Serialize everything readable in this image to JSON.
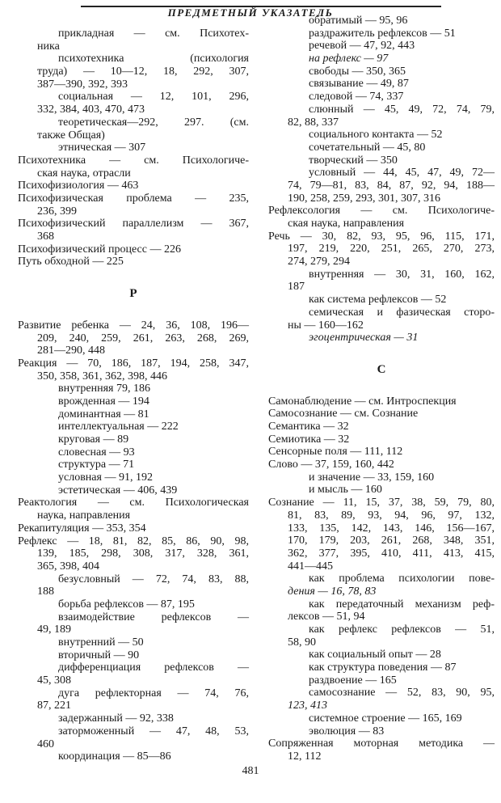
{
  "header": {
    "title": "ПРЕДМЕТНЫЙ УКАЗАТЕЛЬ"
  },
  "page_number": "481",
  "left_column": [
    {
      "t": "s",
      "text": "прикладная — см. Психотех-"
    },
    {
      "t": "c",
      "text": "ника"
    },
    {
      "t": "s",
      "text": "психотехника (психология"
    },
    {
      "t": "c",
      "text": "труда) — 10—12, 18, 292, 307,"
    },
    {
      "t": "c",
      "text": "387—390, 392, 393"
    },
    {
      "t": "s",
      "text": "социальная — 12, 101, 296,"
    },
    {
      "t": "c",
      "text": "332, 384, 403, 470, 473"
    },
    {
      "t": "s",
      "text": "теоретическая—292, 297. (см."
    },
    {
      "t": "c",
      "text": "также Общая)"
    },
    {
      "t": "s",
      "text": "этническая — 307"
    },
    {
      "t": "m",
      "text": "Психотехника — см. Психологиче-"
    },
    {
      "t": "c",
      "text": "ская наука, отрасли"
    },
    {
      "t": "m",
      "text": "Психофизиология — 463"
    },
    {
      "t": "m",
      "text": "Психофизическая проблема — 235,"
    },
    {
      "t": "c",
      "text": "236, 399"
    },
    {
      "t": "m",
      "text": "Психофизический параллелизм — 367,"
    },
    {
      "t": "c",
      "text": "368"
    },
    {
      "t": "m",
      "text": "Психофизический процесс — 226"
    },
    {
      "t": "m",
      "text": "Путь обходной — 225"
    },
    {
      "t": "h",
      "text": "Р"
    },
    {
      "t": "m",
      "text": "Развитие ребенка — 24, 36, 108, 196—"
    },
    {
      "t": "c",
      "text": "209, 240, 259, 261, 263, 268, 269,"
    },
    {
      "t": "c",
      "text": "281—290, 448"
    },
    {
      "t": "m",
      "text": "Реакция — 70, 186, 187, 194, 258, 347,"
    },
    {
      "t": "c",
      "text": "350, 358, 361, 362, 398, 446"
    },
    {
      "t": "s",
      "text": "внутренняя 79, 186"
    },
    {
      "t": "s",
      "text": "врожденная — 194"
    },
    {
      "t": "s",
      "text": "доминантная — 81"
    },
    {
      "t": "s",
      "text": "интеллектуальная — 222"
    },
    {
      "t": "s",
      "text": "круговая — 89"
    },
    {
      "t": "s",
      "text": "словесная — 93"
    },
    {
      "t": "s",
      "text": "структура — 71"
    },
    {
      "t": "s",
      "text": "условная — 91, 192"
    },
    {
      "t": "s",
      "text": "эстетическая — 406, 439"
    },
    {
      "t": "m",
      "text": "Реактология — см. Психологическая"
    },
    {
      "t": "c",
      "text": "наука, направления"
    },
    {
      "t": "m",
      "text": "Рекапитуляция — 353, 354"
    },
    {
      "t": "m",
      "text": "Рефлекс — 18, 81, 82, 85, 86, 90, 98,"
    },
    {
      "t": "c",
      "text": "139, 185, 298, 308, 317, 328, 361,"
    },
    {
      "t": "c",
      "text": "365, 398, 404"
    },
    {
      "t": "s",
      "text": "безусловный — 72, 74, 83, 88,"
    },
    {
      "t": "c",
      "text": "188"
    },
    {
      "t": "s",
      "text": "борьба рефлексов — 87, 195"
    },
    {
      "t": "s",
      "text": "взаимодействие рефлексов —"
    },
    {
      "t": "c",
      "text": "49, 189"
    },
    {
      "t": "s",
      "text": "внутренний — 50"
    },
    {
      "t": "s",
      "text": "вторичный — 90"
    },
    {
      "t": "s",
      "text": "дифференциация рефлексов —"
    },
    {
      "t": "c",
      "text": "45, 308"
    },
    {
      "t": "s",
      "text": "дуга рефлекторная — 74, 76,"
    },
    {
      "t": "c",
      "text": "87, 221"
    },
    {
      "t": "s",
      "text": "задержанный — 92, 338"
    },
    {
      "t": "s",
      "text": "заторможенный — 47, 48, 53,"
    },
    {
      "t": "c",
      "text": "460"
    },
    {
      "t": "s",
      "text": "координация — 85—86"
    }
  ],
  "right_column": [
    {
      "t": "s",
      "text": "обратимый — 95, 96"
    },
    {
      "t": "s",
      "text": "раздражитель рефлексов — 51"
    },
    {
      "t": "s",
      "text": "речевой — 47, 92, 443"
    },
    {
      "t": "s",
      "i": true,
      "text": "на рефлекс — 97"
    },
    {
      "t": "s",
      "text": "свободы — 350, 365"
    },
    {
      "t": "s",
      "text": "связывание — 49, 87"
    },
    {
      "t": "s",
      "text": "следовой — 74, 337"
    },
    {
      "t": "s",
      "text": "слюнный — 45, 49, 72, 74, 79,"
    },
    {
      "t": "c",
      "text": "82, 88, 337"
    },
    {
      "t": "s",
      "text": "социального контакта — 52"
    },
    {
      "t": "s",
      "text": "сочетательный — 45, 80"
    },
    {
      "t": "s",
      "text": "творческий — 350"
    },
    {
      "t": "s",
      "text": "условный — 44, 45, 47, 49, 72—"
    },
    {
      "t": "c",
      "text": "74, 79—81, 83, 84, 87, 92, 94, 188—"
    },
    {
      "t": "c",
      "text": "190, 258, 259, 293, 301, 307, 316"
    },
    {
      "t": "m",
      "text": "Рефлексология — см. Психологиче-"
    },
    {
      "t": "c",
      "text": "ская наука, направления"
    },
    {
      "t": "m",
      "text": "Речь — 30, 82, 93, 95, 96, 115, 171,"
    },
    {
      "t": "c",
      "text": "197, 219, 220, 251, 265, 270, 273,"
    },
    {
      "t": "c",
      "text": "274, 279, 294"
    },
    {
      "t": "s",
      "text": "внутренняя — 30, 31, 160, 162,"
    },
    {
      "t": "c",
      "text": "187"
    },
    {
      "t": "s",
      "text": "как система рефлексов — 52"
    },
    {
      "t": "s",
      "text": "семическая и фазическая сторо-"
    },
    {
      "t": "c",
      "text": "ны — 160—162"
    },
    {
      "t": "s",
      "i": true,
      "text": "эгоцентрическая — 31"
    },
    {
      "t": "h",
      "text": "С"
    },
    {
      "t": "m",
      "text": "Самонаблюдение — см. Интроспекция"
    },
    {
      "t": "m",
      "text": "Самосознание — см. Сознание"
    },
    {
      "t": "m",
      "text": "Семантика — 32"
    },
    {
      "t": "m",
      "text": "Семиотика — 32"
    },
    {
      "t": "m",
      "text": "Сенсорные поля — 111, 112"
    },
    {
      "t": "m",
      "text": "Слово — 37, 159, 160, 442"
    },
    {
      "t": "s",
      "text": "и значение — 33, 159, 160"
    },
    {
      "t": "s",
      "text": "и мысль — 160"
    },
    {
      "t": "m",
      "text": "Сознание — 11, 15, 37, 38, 59, 79, 80,"
    },
    {
      "t": "c",
      "text": "81, 83, 89, 93, 94, 96, 97, 132,"
    },
    {
      "t": "c",
      "text": "133, 135, 142, 143, 146, 156—167,"
    },
    {
      "t": "c",
      "text": "170, 179, 203, 261, 268, 348, 351,"
    },
    {
      "t": "c",
      "text": "362, 377, 395, 410, 411, 413, 415,"
    },
    {
      "t": "c",
      "text": "441—445"
    },
    {
      "t": "s",
      "text": "как проблема психологии пове-"
    },
    {
      "t": "c",
      "i": true,
      "text": "дения — 16, 78, 83"
    },
    {
      "t": "s",
      "text": "как передаточный механизм реф-"
    },
    {
      "t": "c",
      "text": "лексов — 51, 94"
    },
    {
      "t": "s",
      "text": "как рефлекс рефлексов — 51,"
    },
    {
      "t": "c",
      "text": "58, 90"
    },
    {
      "t": "s",
      "text": "как социальный опыт — 28"
    },
    {
      "t": "s",
      "text": "как структура поведения — 87"
    },
    {
      "t": "s",
      "text": "раздвоение — 165"
    },
    {
      "t": "s",
      "text": "самосознание — 52, 83, 90, 95,"
    },
    {
      "t": "c",
      "i": true,
      "text": "123, 413"
    },
    {
      "t": "s",
      "text": "системное строение — 165, 169"
    },
    {
      "t": "s",
      "text": "эволюция — 83"
    },
    {
      "t": "m",
      "text": "Сопряженная моторная методика —"
    },
    {
      "t": "c",
      "text": "12, 112"
    }
  ]
}
